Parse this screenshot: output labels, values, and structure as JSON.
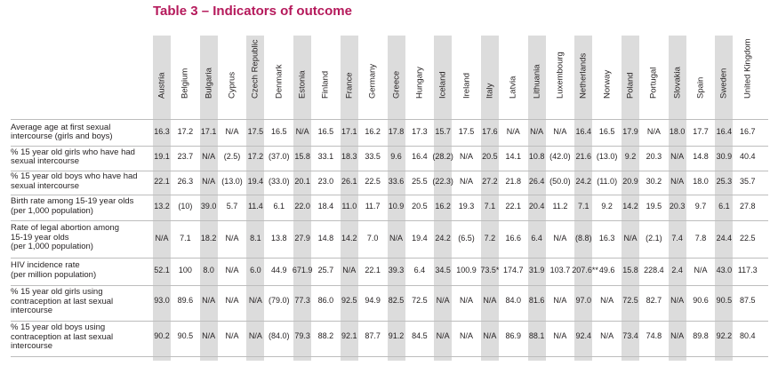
{
  "title": "Table 3 – Indicators of outcome",
  "columns": [
    "Austria",
    "Belgium",
    "Bulgaria",
    "Cyprus",
    "Czech Republic",
    "Denmark",
    "Estonia",
    "Finland",
    "France",
    "Germany",
    "Greece",
    "Hungary",
    "Iceland",
    "Ireland",
    "Italy",
    "Latvia",
    "Lithuania",
    "Luxembourg",
    "Netherlands",
    "Norway",
    "Poland",
    "Portugal",
    "Slovakia",
    "Spain",
    "Sweden",
    "United Kingdom"
  ],
  "rows": [
    {
      "label": [
        "Average age at first sexual",
        "intercourse (girls and boys)"
      ],
      "values": [
        "16.3",
        "17.2",
        "17.1",
        "N/A",
        "17.5",
        "16.5",
        "N/A",
        "16.5",
        "17.1",
        "16.2",
        "17.8",
        "17.3",
        "15.7",
        "17.5",
        "17.6",
        "N/A",
        "N/A",
        "N/A",
        "16.4",
        "16.5",
        "17.9",
        "N/A",
        "18.0",
        "17.7",
        "16.4",
        "16.7"
      ]
    },
    {
      "label": [
        "% 15 year old girls who have had",
        "sexual intercourse"
      ],
      "values": [
        "19.1",
        "23.7",
        "N/A",
        "(2.5)",
        "17.2",
        "(37.0)",
        "15.8",
        "33.1",
        "18.3",
        "33.5",
        "9.6",
        "16.4",
        "(28.2)",
        "N/A",
        "20.5",
        "14.1",
        "10.8",
        "(42.0)",
        "21.6",
        "(13.0)",
        "9.2",
        "20.3",
        "N/A",
        "14.8",
        "30.9",
        "40.4"
      ]
    },
    {
      "label": [
        "% 15 year old boys who have had",
        "sexual intercourse"
      ],
      "values": [
        "22.1",
        "26.3",
        "N/A",
        "(13.0)",
        "19.4",
        "(33.0)",
        "20.1",
        "23.0",
        "26.1",
        "22.5",
        "33.6",
        "25.5",
        "(22.3)",
        "N/A",
        "27.2",
        "21.8",
        "26.4",
        "(50.0)",
        "24.2",
        "(11.0)",
        "20.9",
        "30.2",
        "N/A",
        "18.0",
        "25.3",
        "35.7"
      ]
    },
    {
      "label": [
        "Birth rate among 15-19 year olds",
        "(per 1,000 population)"
      ],
      "values": [
        "13.2",
        "(10)",
        "39.0",
        "5.7",
        "11.4",
        "6.1",
        "22.0",
        "18.4",
        "11.0",
        "11.7",
        "10.9",
        "20.5",
        "16.2",
        "19.3",
        "7.1",
        "22.1",
        "20.4",
        "11.2",
        "7.1",
        "9.2",
        "14.2",
        "19.5",
        "20.3",
        "9.7",
        "6.1",
        "27.8"
      ]
    },
    {
      "label": [
        "Rate of legal abortion among",
        "15-19 year olds",
        "(per 1,000 population)"
      ],
      "values": [
        "N/A",
        "7.1",
        "18.2",
        "N/A",
        "8.1",
        "13.8",
        "27.9",
        "14.8",
        "14.2",
        "7.0",
        "N/A",
        "19.4",
        "24.2",
        "(6.5)",
        "7.2",
        "16.6",
        "6.4",
        "N/A",
        "(8.8)",
        "16.3",
        "N/A",
        "(2.1)",
        "7.4",
        "7.8",
        "24.4",
        "22.5"
      ]
    },
    {
      "label": [
        "HIV incidence rate",
        "(per million population)"
      ],
      "values": [
        "52.1",
        "100",
        "8.0",
        "N/A",
        "6.0",
        "44.9",
        "671.9",
        "25.7",
        "N/A",
        "22.1",
        "39.3",
        "6.4",
        "34.5",
        "100.9",
        "73.5*",
        "174.7",
        "31.9",
        "103.7",
        "207.6**",
        "49.6",
        "15.8",
        "228.4",
        "2.4",
        "N/A",
        "43.0",
        "117.3"
      ]
    },
    {
      "label": [
        "% 15 year old girls using",
        "contraception at last sexual",
        "intercourse"
      ],
      "values": [
        "93.0",
        "89.6",
        "N/A",
        "N/A",
        "N/A",
        "(79.0)",
        "77.3",
        "86.0",
        "92.5",
        "94.9",
        "82.5",
        "72.5",
        "N/A",
        "N/A",
        "N/A",
        "84.0",
        "81.6",
        "N/A",
        "97.0",
        "N/A",
        "72.5",
        "82.7",
        "N/A",
        "90.6",
        "90.5",
        "87.5"
      ]
    },
    {
      "label": [
        "% 15 year old boys using",
        "contraception at last sexual",
        "intercourse"
      ],
      "values": [
        "90.2",
        "90.5",
        "N/A",
        "N/A",
        "N/A",
        "(84.0)",
        "79.3",
        "88.2",
        "92.1",
        "87.7",
        "91.2",
        "84.5",
        "N/A",
        "N/A",
        "N/A",
        "86.9",
        "88.1",
        "N/A",
        "92.4",
        "N/A",
        "73.4",
        "74.8",
        "N/A",
        "89.8",
        "92.2",
        "80.4"
      ]
    }
  ]
}
